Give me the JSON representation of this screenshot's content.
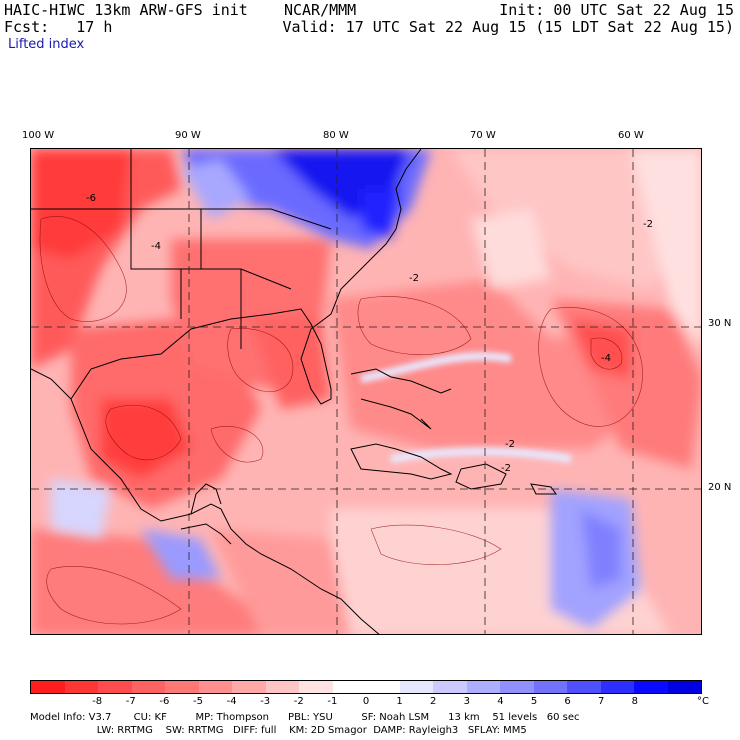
{
  "header": {
    "line1_left": "HAIC-HIWC 13km ARW-GFS init    NCAR/MMM",
    "line2_left": "Fcst:   17 h",
    "line1_right": "Init: 00 UTC Sat 22 Aug 15",
    "line2_right": "Valid: 17 UTC Sat 22 Aug 15 (15 LDT Sat 22 Aug 15)",
    "field": "Lifted index"
  },
  "map": {
    "lon_labels": [
      "100 W",
      "90 W",
      "80 W",
      "70 W",
      "60 W"
    ],
    "lat_labels": [
      "30 N",
      "20 N"
    ],
    "contour_labels": [
      "-6",
      "-4",
      "-2",
      "-2",
      "-2",
      "-2",
      "-4"
    ]
  },
  "colorbar": {
    "colors": [
      "#ff1e1e",
      "#ff3636",
      "#ff4c4c",
      "#ff6262",
      "#ff7878",
      "#ff8e8e",
      "#ffa8a8",
      "#ffc4c4",
      "#ffe2e2",
      "#ffffff",
      "#ffffff",
      "#e6e6ff",
      "#cacaff",
      "#aeaeff",
      "#9090ff",
      "#7272ff",
      "#5050ff",
      "#2e2eff",
      "#0a0aff",
      "#0000e0"
    ],
    "ticks": [
      "-8",
      "-7",
      "-6",
      "-5",
      "-4",
      "-3",
      "-2",
      "-1",
      "0",
      "1",
      "2",
      "3",
      "4",
      "5",
      "6",
      "7",
      "8"
    ],
    "unit": "°C"
  },
  "model_info": {
    "line1": "Model Info: V3.7       CU: KF         MP: Thompson      PBL: YSU         SF: Noah LSM      13 km    51 levels   60 sec",
    "line2": "                     LW: RRTMG    SW: RRTMG   DIFF: full    KM: 2D Smagor  DAMP: Rayleigh3   SFLAY: MM5"
  }
}
